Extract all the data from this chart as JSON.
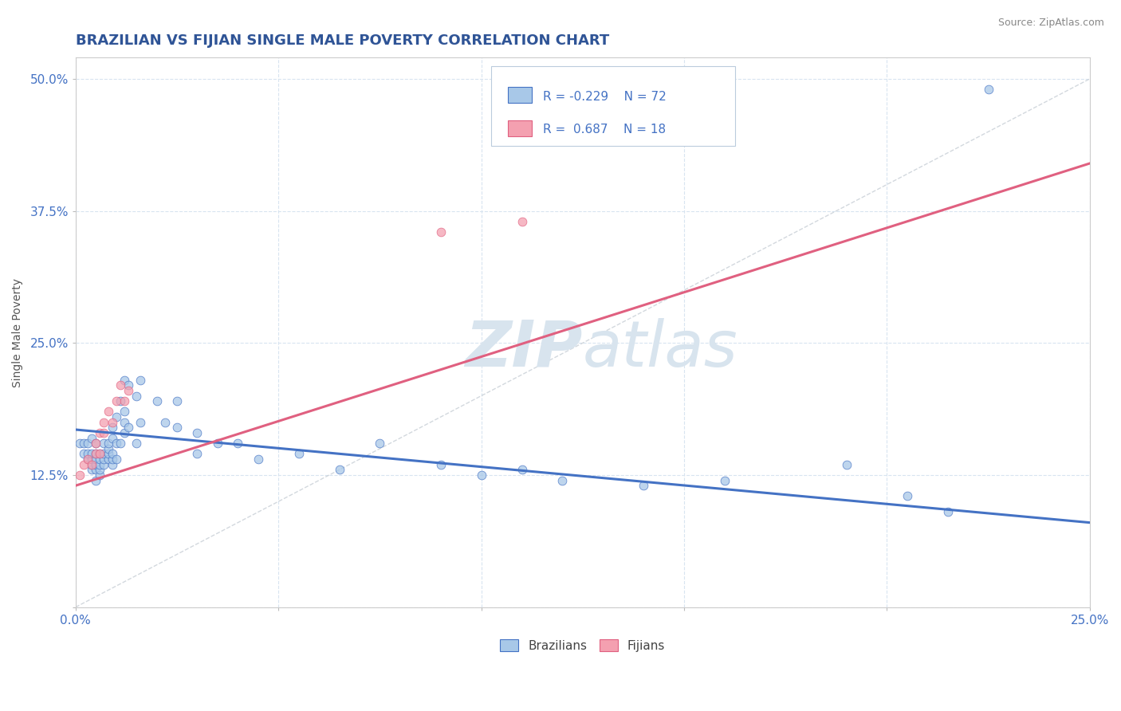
{
  "title": "BRAZILIAN VS FIJIAN SINGLE MALE POVERTY CORRELATION CHART",
  "source_text": "Source: ZipAtlas.com",
  "ylabel": "Single Male Poverty",
  "xlim": [
    0.0,
    0.25
  ],
  "ylim": [
    0.0,
    0.52
  ],
  "xticks": [
    0.0,
    0.05,
    0.1,
    0.15,
    0.2,
    0.25
  ],
  "yticks": [
    0.0,
    0.125,
    0.25,
    0.375,
    0.5
  ],
  "xtick_labels": [
    "0.0%",
    "",
    "",
    "",
    "",
    "25.0%"
  ],
  "ytick_labels": [
    "",
    "12.5%",
    "25.0%",
    "37.5%",
    "50.0%"
  ],
  "R_brazilian": -0.229,
  "N_brazilian": 72,
  "R_fijian": 0.687,
  "N_fijian": 18,
  "brazilian_color": "#A8C8E8",
  "fijian_color": "#F4A0B0",
  "trend_brazilian_color": "#4472C4",
  "trend_fijian_color": "#E06080",
  "diagonal_color": "#C0C8D0",
  "background_color": "#FFFFFF",
  "grid_color": "#D8E4F0",
  "title_color": "#2F5496",
  "axis_color": "#4472C4",
  "watermark_color": "#D8E4EE",
  "brazilians_scatter_x": [
    0.001,
    0.002,
    0.002,
    0.003,
    0.003,
    0.003,
    0.004,
    0.004,
    0.004,
    0.004,
    0.004,
    0.005,
    0.005,
    0.005,
    0.005,
    0.005,
    0.005,
    0.006,
    0.006,
    0.006,
    0.006,
    0.006,
    0.007,
    0.007,
    0.007,
    0.007,
    0.008,
    0.008,
    0.008,
    0.008,
    0.009,
    0.009,
    0.009,
    0.009,
    0.009,
    0.01,
    0.01,
    0.01,
    0.011,
    0.011,
    0.012,
    0.012,
    0.012,
    0.012,
    0.013,
    0.013,
    0.015,
    0.015,
    0.016,
    0.016,
    0.02,
    0.022,
    0.025,
    0.025,
    0.03,
    0.03,
    0.035,
    0.04,
    0.045,
    0.055,
    0.065,
    0.075,
    0.09,
    0.1,
    0.11,
    0.12,
    0.14,
    0.16,
    0.19,
    0.205,
    0.215,
    0.225
  ],
  "brazilians_scatter_y": [
    0.155,
    0.145,
    0.155,
    0.14,
    0.145,
    0.155,
    0.13,
    0.135,
    0.14,
    0.145,
    0.16,
    0.12,
    0.13,
    0.135,
    0.14,
    0.145,
    0.155,
    0.125,
    0.13,
    0.135,
    0.14,
    0.145,
    0.135,
    0.14,
    0.145,
    0.155,
    0.14,
    0.145,
    0.15,
    0.155,
    0.135,
    0.14,
    0.145,
    0.16,
    0.17,
    0.14,
    0.155,
    0.18,
    0.155,
    0.195,
    0.165,
    0.175,
    0.185,
    0.215,
    0.17,
    0.21,
    0.155,
    0.2,
    0.175,
    0.215,
    0.195,
    0.175,
    0.17,
    0.195,
    0.145,
    0.165,
    0.155,
    0.155,
    0.14,
    0.145,
    0.13,
    0.155,
    0.135,
    0.125,
    0.13,
    0.12,
    0.115,
    0.12,
    0.135,
    0.105,
    0.09,
    0.49
  ],
  "fijians_scatter_x": [
    0.001,
    0.002,
    0.003,
    0.004,
    0.005,
    0.005,
    0.006,
    0.006,
    0.007,
    0.007,
    0.008,
    0.009,
    0.01,
    0.011,
    0.012,
    0.013,
    0.09,
    0.11
  ],
  "fijians_scatter_y": [
    0.125,
    0.135,
    0.14,
    0.135,
    0.145,
    0.155,
    0.145,
    0.165,
    0.165,
    0.175,
    0.185,
    0.175,
    0.195,
    0.21,
    0.195,
    0.205,
    0.355,
    0.365
  ],
  "trend_b_x0": 0.0,
  "trend_b_y0": 0.168,
  "trend_b_x1": 0.25,
  "trend_b_y1": 0.08,
  "trend_f_x0": 0.0,
  "trend_f_y0": 0.115,
  "trend_f_x1": 0.25,
  "trend_f_y1": 0.42
}
